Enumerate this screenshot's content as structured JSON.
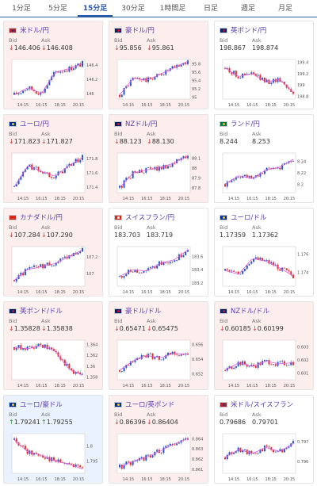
{
  "tabs": [
    {
      "label": "1分足",
      "active": false
    },
    {
      "label": "5分足",
      "active": false
    },
    {
      "label": "15分足",
      "active": true
    },
    {
      "label": "30分足",
      "active": false
    },
    {
      "label": "1時間足",
      "active": false
    },
    {
      "label": "日足",
      "active": false
    },
    {
      "label": "週足",
      "active": false
    },
    {
      "label": "月足",
      "active": false
    }
  ],
  "labels": {
    "bid": "Bid",
    "ask": "Ask"
  },
  "colors": {
    "candle_up": "#2b55c7",
    "candle_down": "#e03030",
    "ma_line": "#e05adf",
    "card_down_bg": "#fdeeee",
    "card_up_bg": "#eaf3fd",
    "accent": "#2a59a8",
    "pair_text": "#5a3db0"
  },
  "cards": [
    {
      "pair": "米ドル/円",
      "flag": "us-flag",
      "direction": "down",
      "bid": "146.406",
      "ask": "146.408",
      "chart": {
        "x_labels": [
          "14:15",
          "16:15",
          "18:15",
          "20:15"
        ],
        "y_labels": [
          "146.4",
          "146.2",
          "146"
        ],
        "ylim": [
          145.92,
          146.48
        ],
        "trend": [
          145.98,
          146.08,
          146.0,
          146.3,
          146.35,
          146.42
        ]
      }
    },
    {
      "pair": "豪ドル/円",
      "flag": "au-flag",
      "direction": "down",
      "bid": "95.856",
      "ask": "95.861",
      "chart": {
        "x_labels": [
          "14:15",
          "16:15",
          "18:15",
          "20:15"
        ],
        "y_labels": [
          "95.8",
          "95.6",
          "95.4",
          "95.2",
          "95"
        ],
        "ylim": [
          94.95,
          95.9
        ],
        "trend": [
          95.05,
          95.45,
          95.4,
          95.55,
          95.7,
          95.86
        ]
      }
    },
    {
      "pair": "英ポンド/円",
      "flag": "gb-flag",
      "direction": "neutral",
      "bid": "198.867",
      "ask": "198.874",
      "chart": {
        "x_labels": [
          "14:15",
          "16:15",
          "18:15",
          "20:15"
        ],
        "y_labels": [
          "199.4",
          "199.2",
          "199",
          "198.8"
        ],
        "ylim": [
          198.75,
          199.45
        ],
        "trend": [
          199.3,
          199.15,
          199.2,
          199.05,
          199.1,
          198.87
        ]
      }
    },
    {
      "pair": "ユーロ/円",
      "flag": "eu-flag",
      "direction": "down",
      "bid": "171.823",
      "ask": "171.827",
      "chart": {
        "x_labels": [
          "14:15",
          "16:15",
          "18:15",
          "20:15"
        ],
        "y_labels": [
          "171.8",
          "171.6",
          "171.4"
        ],
        "ylim": [
          171.32,
          171.88
        ],
        "trend": [
          171.4,
          171.7,
          171.62,
          171.55,
          171.7,
          171.82
        ]
      }
    },
    {
      "pair": "NZドル/円",
      "flag": "nz-flag",
      "direction": "down",
      "bid": "88.123",
      "ask": "88.130",
      "chart": {
        "x_labels": [
          "14:15",
          "16:15",
          "18:15",
          "20:15"
        ],
        "y_labels": [
          "88.1",
          "88",
          "87.9",
          "87.8"
        ],
        "ylim": [
          87.75,
          88.15
        ],
        "trend": [
          87.8,
          87.95,
          87.98,
          88.0,
          88.05,
          88.12
        ]
      }
    },
    {
      "pair": "ランド/円",
      "flag": "za-flag",
      "direction": "neutral",
      "bid": "8.244",
      "ask": "8.253",
      "chart": {
        "x_labels": [
          "14:15",
          "16:15",
          "18:15",
          "20:15"
        ],
        "y_labels": [
          "8.24",
          "8.22",
          "8.2"
        ],
        "ylim": [
          8.185,
          8.255
        ],
        "trend": [
          8.2,
          8.215,
          8.21,
          8.225,
          8.23,
          8.244
        ]
      }
    },
    {
      "pair": "カナダドル/円",
      "flag": "ca-flag",
      "direction": "down",
      "bid": "107.284",
      "ask": "107.290",
      "chart": {
        "x_labels": [
          "14:15",
          "16:15",
          "18:15",
          "20:15"
        ],
        "y_labels": [
          "107.2",
          "107"
        ],
        "ylim": [
          106.85,
          107.32
        ],
        "trend": [
          106.92,
          107.05,
          107.08,
          107.12,
          107.2,
          107.28
        ]
      }
    },
    {
      "pair": "スイスフラン/円",
      "flag": "ch-flag",
      "direction": "neutral",
      "bid": "183.703",
      "ask": "183.719",
      "chart": {
        "x_labels": [
          "14:15",
          "16:15",
          "18:15",
          "20:15"
        ],
        "y_labels": [
          "183.6",
          "183.4",
          "183.2"
        ],
        "ylim": [
          183.15,
          183.75
        ],
        "trend": [
          183.3,
          183.4,
          183.38,
          183.5,
          183.55,
          183.7
        ]
      }
    },
    {
      "pair": "ユーロ/ドル",
      "flag": "eu-flag",
      "direction": "neutral",
      "bid": "1.17359",
      "ask": "1.17362",
      "chart": {
        "x_labels": [
          "14:15",
          "16:15",
          "18:15",
          "20:15"
        ],
        "y_labels": [
          "1.176",
          "1.174"
        ],
        "ylim": [
          1.1725,
          1.1768
        ],
        "trend": [
          1.1742,
          1.1738,
          1.1755,
          1.1752,
          1.1745,
          1.1736
        ]
      }
    },
    {
      "pair": "英ポンド/ドル",
      "flag": "gb-flag",
      "direction": "down",
      "bid": "1.35828",
      "ask": "1.35838",
      "chart": {
        "x_labels": [
          "14:15",
          "16:15",
          "18:15",
          "20:15"
        ],
        "y_labels": [
          "1.364",
          "1.362",
          "1.36",
          "1.358"
        ],
        "ylim": [
          1.3575,
          1.3648
        ],
        "trend": [
          1.3635,
          1.3632,
          1.3638,
          1.3628,
          1.3595,
          1.3583
        ]
      }
    },
    {
      "pair": "豪ドル/ドル",
      "flag": "au-flag",
      "direction": "down",
      "bid": "0.65471",
      "ask": "0.65475",
      "chart": {
        "x_labels": [
          "14:15",
          "16:15",
          "18:15",
          "20:15"
        ],
        "y_labels": [
          "0.656",
          "0.654",
          "0.652"
        ],
        "ylim": [
          0.6512,
          0.6566
        ],
        "trend": [
          0.6525,
          0.6538,
          0.6545,
          0.6542,
          0.6548,
          0.6547
        ]
      }
    },
    {
      "pair": "NZドル/ドル",
      "flag": "nz-flag",
      "direction": "down",
      "bid": "0.60185",
      "ask": "0.60199",
      "chart": {
        "x_labels": [
          "14:15",
          "16:15",
          "18:15",
          "20:15"
        ],
        "y_labels": [
          "0.603",
          "0.602",
          "0.601"
        ],
        "ylim": [
          0.6005,
          0.6035
        ],
        "trend": [
          0.6012,
          0.6018,
          0.6015,
          0.6019,
          0.6017,
          0.6018
        ]
      }
    },
    {
      "pair": "ユーロ/豪ドル",
      "flag": "eu-flag",
      "direction": "up",
      "bid": "1.79241",
      "ask": "1.79255",
      "chart": {
        "x_labels": [
          "14:15",
          "16:15",
          "18:15",
          "20:15"
        ],
        "y_labels": [
          "1.8",
          "1.795"
        ],
        "ylim": [
          1.791,
          1.804
        ],
        "trend": [
          1.802,
          1.798,
          1.797,
          1.795,
          1.794,
          1.7924
        ]
      }
    },
    {
      "pair": "ユーロ/英ポンド",
      "flag": "eu-flag",
      "direction": "down",
      "bid": "0.86396",
      "ask": "0.86404",
      "chart": {
        "x_labels": [
          "14:15",
          "16:15",
          "18:15",
          "20:15"
        ],
        "y_labels": [
          "0.864",
          "0.863",
          "0.862",
          "0.861"
        ],
        "ylim": [
          0.8606,
          0.8645
        ],
        "trend": [
          0.8612,
          0.8618,
          0.8622,
          0.8628,
          0.8635,
          0.864
        ]
      }
    },
    {
      "pair": "米ドル/スイスフラン",
      "flag": "us-flag",
      "direction": "neutral",
      "bid": "0.79686",
      "ask": "0.79701",
      "chart": {
        "x_labels": [
          "14:15",
          "16:15",
          "18:15",
          "20:15"
        ],
        "y_labels": [
          "0.797",
          "0.796"
        ],
        "ylim": [
          0.7954,
          0.7974
        ],
        "trend": [
          0.7962,
          0.7966,
          0.7964,
          0.7967,
          0.7965,
          0.7969
        ]
      }
    }
  ]
}
